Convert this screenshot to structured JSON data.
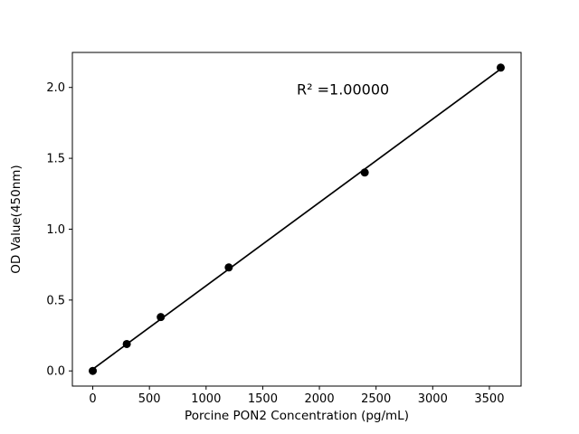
{
  "chart_data": {
    "type": "scatter",
    "title": "",
    "xlabel": "Porcine PON2 Concentration (pg/mL)",
    "ylabel": "OD Value(450nm)",
    "x": [
      0,
      300,
      600,
      1200,
      2400,
      3600
    ],
    "y": [
      0.0,
      0.19,
      0.38,
      0.73,
      1.4,
      2.14
    ],
    "xticks": [
      0,
      500,
      1000,
      1500,
      2000,
      2500,
      3000,
      3500
    ],
    "xtick_labels": [
      "0",
      "500",
      "1000",
      "1500",
      "2000",
      "2500",
      "3000",
      "3500"
    ],
    "yticks": [
      0.0,
      0.5,
      1.0,
      1.5,
      2.0
    ],
    "ytick_labels": [
      "0.0",
      "0.5",
      "1.0",
      "1.5",
      "2.0"
    ],
    "xlim": [
      -180,
      3780
    ],
    "ylim": [
      -0.107,
      2.247
    ],
    "annotation": {
      "text": "R² =1.00000",
      "x": 1800,
      "y": 1.95
    },
    "fit_line": true,
    "grid": false,
    "legend_visible": false,
    "colors": {
      "marker": "#000000",
      "line": "#000000",
      "axis": "#000000",
      "background": "#ffffff"
    }
  }
}
